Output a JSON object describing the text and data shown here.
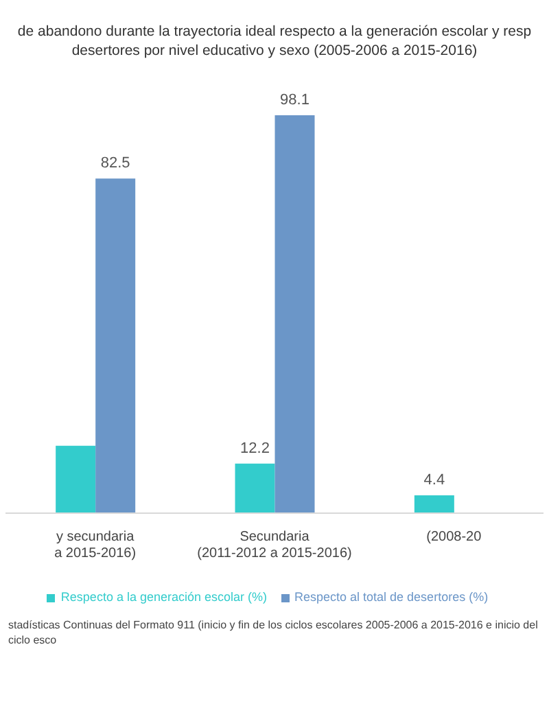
{
  "chart_data": {
    "type": "bar",
    "title": "de abandono durante la trayectoria ideal respecto a la generación escolar y resp",
    "subtitle": "desertores por nivel educativo y sexo (2005-2006 a 2015-2016)",
    "categories": [
      "y secundaria\na 2015-2016)",
      "Secundaria\n(2011-2012 a 2015-2016)",
      "(2008-20"
    ],
    "series": [
      {
        "name": "Respecto a la generación escolar (%)",
        "color": "#33cccc",
        "values": [
          16.6,
          12.2,
          4.4
        ],
        "value_labels": [
          null,
          "12.2",
          "4.4"
        ]
      },
      {
        "name": "Respecto al total de desertores (%)",
        "color": "#6b96c8",
        "values": [
          82.5,
          98.1,
          null
        ],
        "value_labels": [
          "82.5",
          "98.1",
          null
        ]
      }
    ],
    "legend": "bottom",
    "annotations": [
      "stadísticas Continuas del Formato 911 (inicio y fin de los ciclos escolares 2005-2006 a 2015-2016 e inicio del ciclo esco"
    ]
  }
}
